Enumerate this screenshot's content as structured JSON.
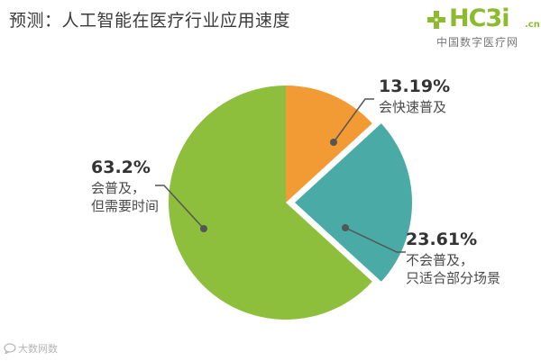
{
  "logo": {
    "brand": "HC3i",
    "suffix": ".cn",
    "tagline": "中国数字医疗网",
    "icon": "green-cross-icon",
    "color": "#8dbb2e"
  },
  "watermark": {
    "text": "大数网数",
    "icon": "chat-bubble-icon"
  },
  "chart_data": {
    "type": "pie",
    "title": "预测：人工智能在医疗行业应用速度",
    "start_angle_deg": 0,
    "direction": "clockwise",
    "slices": [
      {
        "label": "13.19%",
        "value": 13.19,
        "description": [
          "会快速普及"
        ],
        "color": "#f29a34",
        "exploded": false
      },
      {
        "label": "23.61%",
        "value": 23.61,
        "description": [
          "不会普及，",
          "只适合部分场景"
        ],
        "color": "#4aaba6",
        "exploded": true
      },
      {
        "label": "63.2%",
        "value": 63.2,
        "description": [
          "会普及，",
          "但需要时间"
        ],
        "color": "#8dbf3d",
        "exploded": false
      }
    ]
  }
}
